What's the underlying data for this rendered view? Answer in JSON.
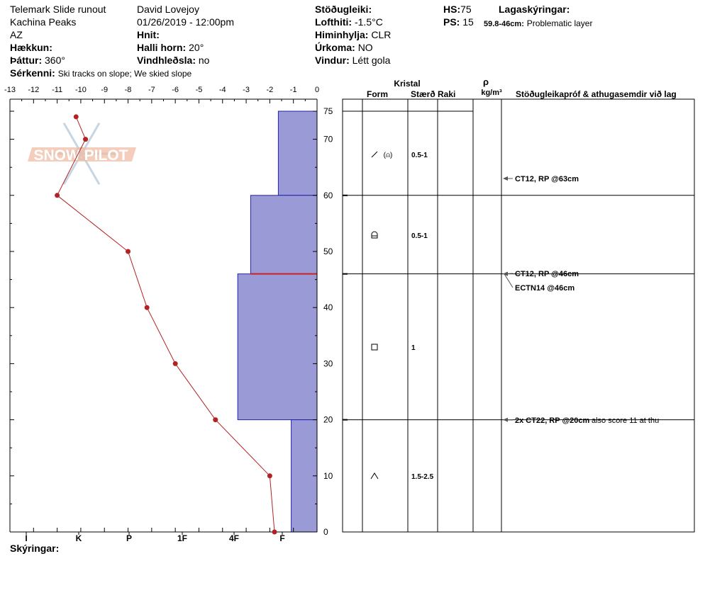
{
  "header": {
    "location": "Telemark Slide runout",
    "range": "Kachina Peaks",
    "state": "AZ",
    "elevation_label": "Hækkun:",
    "aspect_label": "Þáttur:",
    "aspect_value": "360°",
    "features_label": "Sérkenni:",
    "features_value": "Ski tracks on slope; We skied slope",
    "observer": "David Lovejoy",
    "datetime": "01/26/2019 - 12:00pm",
    "coords_label": "Hnit:",
    "slope_label": "Halli horn:",
    "slope_value": "20°",
    "wind_loading_label": "Vindhleðsla:",
    "wind_loading_value": "no",
    "stability_label": "Stöðugleiki:",
    "air_temp_label": "Lofthiti:",
    "air_temp_value": "-1.5°C",
    "sky_label": "Himinhylja:",
    "sky_value": "CLR",
    "precip_label": "Úrkoma:",
    "precip_value": "NO",
    "wind_label": "Vindur:",
    "wind_value": "Létt gola",
    "hs_label": "HS:",
    "hs_value": "75",
    "ps_label": "PS:",
    "ps_value": "15",
    "layer_notes_label": "Lagaskýringar:",
    "problem_range": "59.8-46cm:",
    "problem_text": "Problematic layer"
  },
  "logo": {
    "text": "SNOW PILOT"
  },
  "footer": {
    "notes_label": "Skýringar:"
  },
  "columns": {
    "crystal": "Kristal",
    "form": "Form",
    "size": "Stærð",
    "moisture": "Raki",
    "rho": "ρ",
    "density_unit": "kg/m³",
    "tests": "Stöðugleikapróf & athugasemdir við lag"
  },
  "colors": {
    "layer_fill": "#9a9ad6",
    "profile": "#b22222",
    "problem_layer": "#cc2222",
    "logo": "#f0b8a0"
  },
  "chart_data": {
    "type": "snow-profile",
    "temperature_axis": {
      "label_top_ticks": [
        "-13",
        "-12",
        "-11",
        "-10",
        "-9",
        "-8",
        "-7",
        "-6",
        "-5",
        "-4",
        "-3",
        "-2",
        "-1",
        "0"
      ],
      "range": [
        -13,
        0
      ]
    },
    "depth_axis": {
      "ticks": [
        "75",
        "70",
        "60",
        "50",
        "40",
        "30",
        "20",
        "10",
        "0"
      ],
      "range": [
        0,
        75
      ]
    },
    "hardness_axis": {
      "ticks": [
        "I",
        "K",
        "P",
        "1F",
        "4F",
        "F"
      ]
    },
    "temperature_profile": [
      {
        "depth": 74,
        "temp": -10.2
      },
      {
        "depth": 70,
        "temp": -9.8
      },
      {
        "depth": 60,
        "temp": -11.0
      },
      {
        "depth": 50,
        "temp": -8.0
      },
      {
        "depth": 40,
        "temp": -7.2
      },
      {
        "depth": 30,
        "temp": -6.0
      },
      {
        "depth": 20,
        "temp": -4.3
      },
      {
        "depth": 10,
        "temp": -2.0
      },
      {
        "depth": 0,
        "temp": -1.8
      }
    ],
    "layers": [
      {
        "top": 75,
        "bottom": 60,
        "hardness_units": 2.1,
        "form": "wind-crust-faceted",
        "size": "0.5-1"
      },
      {
        "top": 60,
        "bottom": 46,
        "hardness_units": 3.6,
        "form": "faceted-rounded",
        "size": "0.5-1"
      },
      {
        "top": 46,
        "bottom": 20,
        "hardness_units": 4.3,
        "form": "faceted",
        "size": "1"
      },
      {
        "top": 20,
        "bottom": 0,
        "hardness_units": 1.4,
        "form": "depth-hoar",
        "size": "1.5-2.5"
      }
    ],
    "problem_layer_depth": 46,
    "tests": [
      {
        "depth": 63,
        "label": "CT12, RP @63cm",
        "note": ""
      },
      {
        "depth": 46,
        "label": "CT12, RP @46cm",
        "note": ""
      },
      {
        "depth": 46,
        "label": "ECTN14 @46cm",
        "note": ""
      },
      {
        "depth": 20,
        "label": "2x CT22, RP @20cm",
        "note": "also score 11 at thu"
      }
    ]
  }
}
